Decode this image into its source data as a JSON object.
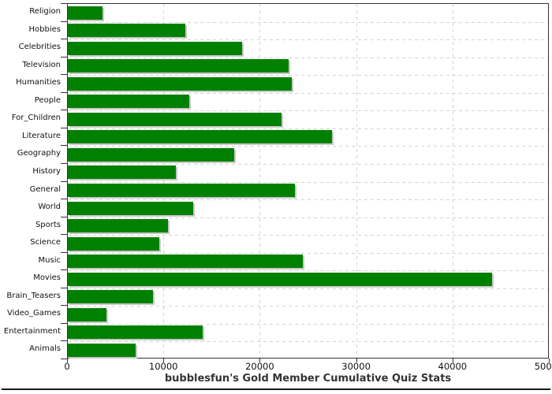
{
  "chart_data": {
    "type": "bar",
    "orientation": "horizontal",
    "title": "bubblesfun's Gold Member Cumulative Quiz Stats",
    "categories": [
      "Religion",
      "Hobbies",
      "Celebrities",
      "Television",
      "Humanities",
      "People",
      "For_Children",
      "Literature",
      "Geography",
      "History",
      "General",
      "World",
      "Sports",
      "Science",
      "Music",
      "Movies",
      "Brain_Teasers",
      "Video_Games",
      "Entertainment",
      "Animals"
    ],
    "values": [
      3600,
      12200,
      18100,
      22900,
      23200,
      12600,
      22200,
      27400,
      17300,
      11200,
      23600,
      13000,
      10400,
      9500,
      24400,
      44000,
      8800,
      4000,
      14000,
      7000
    ],
    "xlabel": "",
    "ylabel": "",
    "xlim": [
      0,
      50000
    ],
    "x_tick_values": [
      0,
      10000,
      20000,
      30000,
      40000,
      50000
    ],
    "x_tick_labels": [
      "0",
      "10000",
      "20000",
      "30000",
      "40000",
      "50000"
    ],
    "grid": true,
    "legend_position": "none",
    "bar_color": "#008000",
    "bar_shadow_color": "#c8c8c8",
    "gridline_color": "#d4d4d4",
    "axis_color": "#333333",
    "label_color": "#111111",
    "title_color": "#333333",
    "background_color": "#ffffff"
  }
}
